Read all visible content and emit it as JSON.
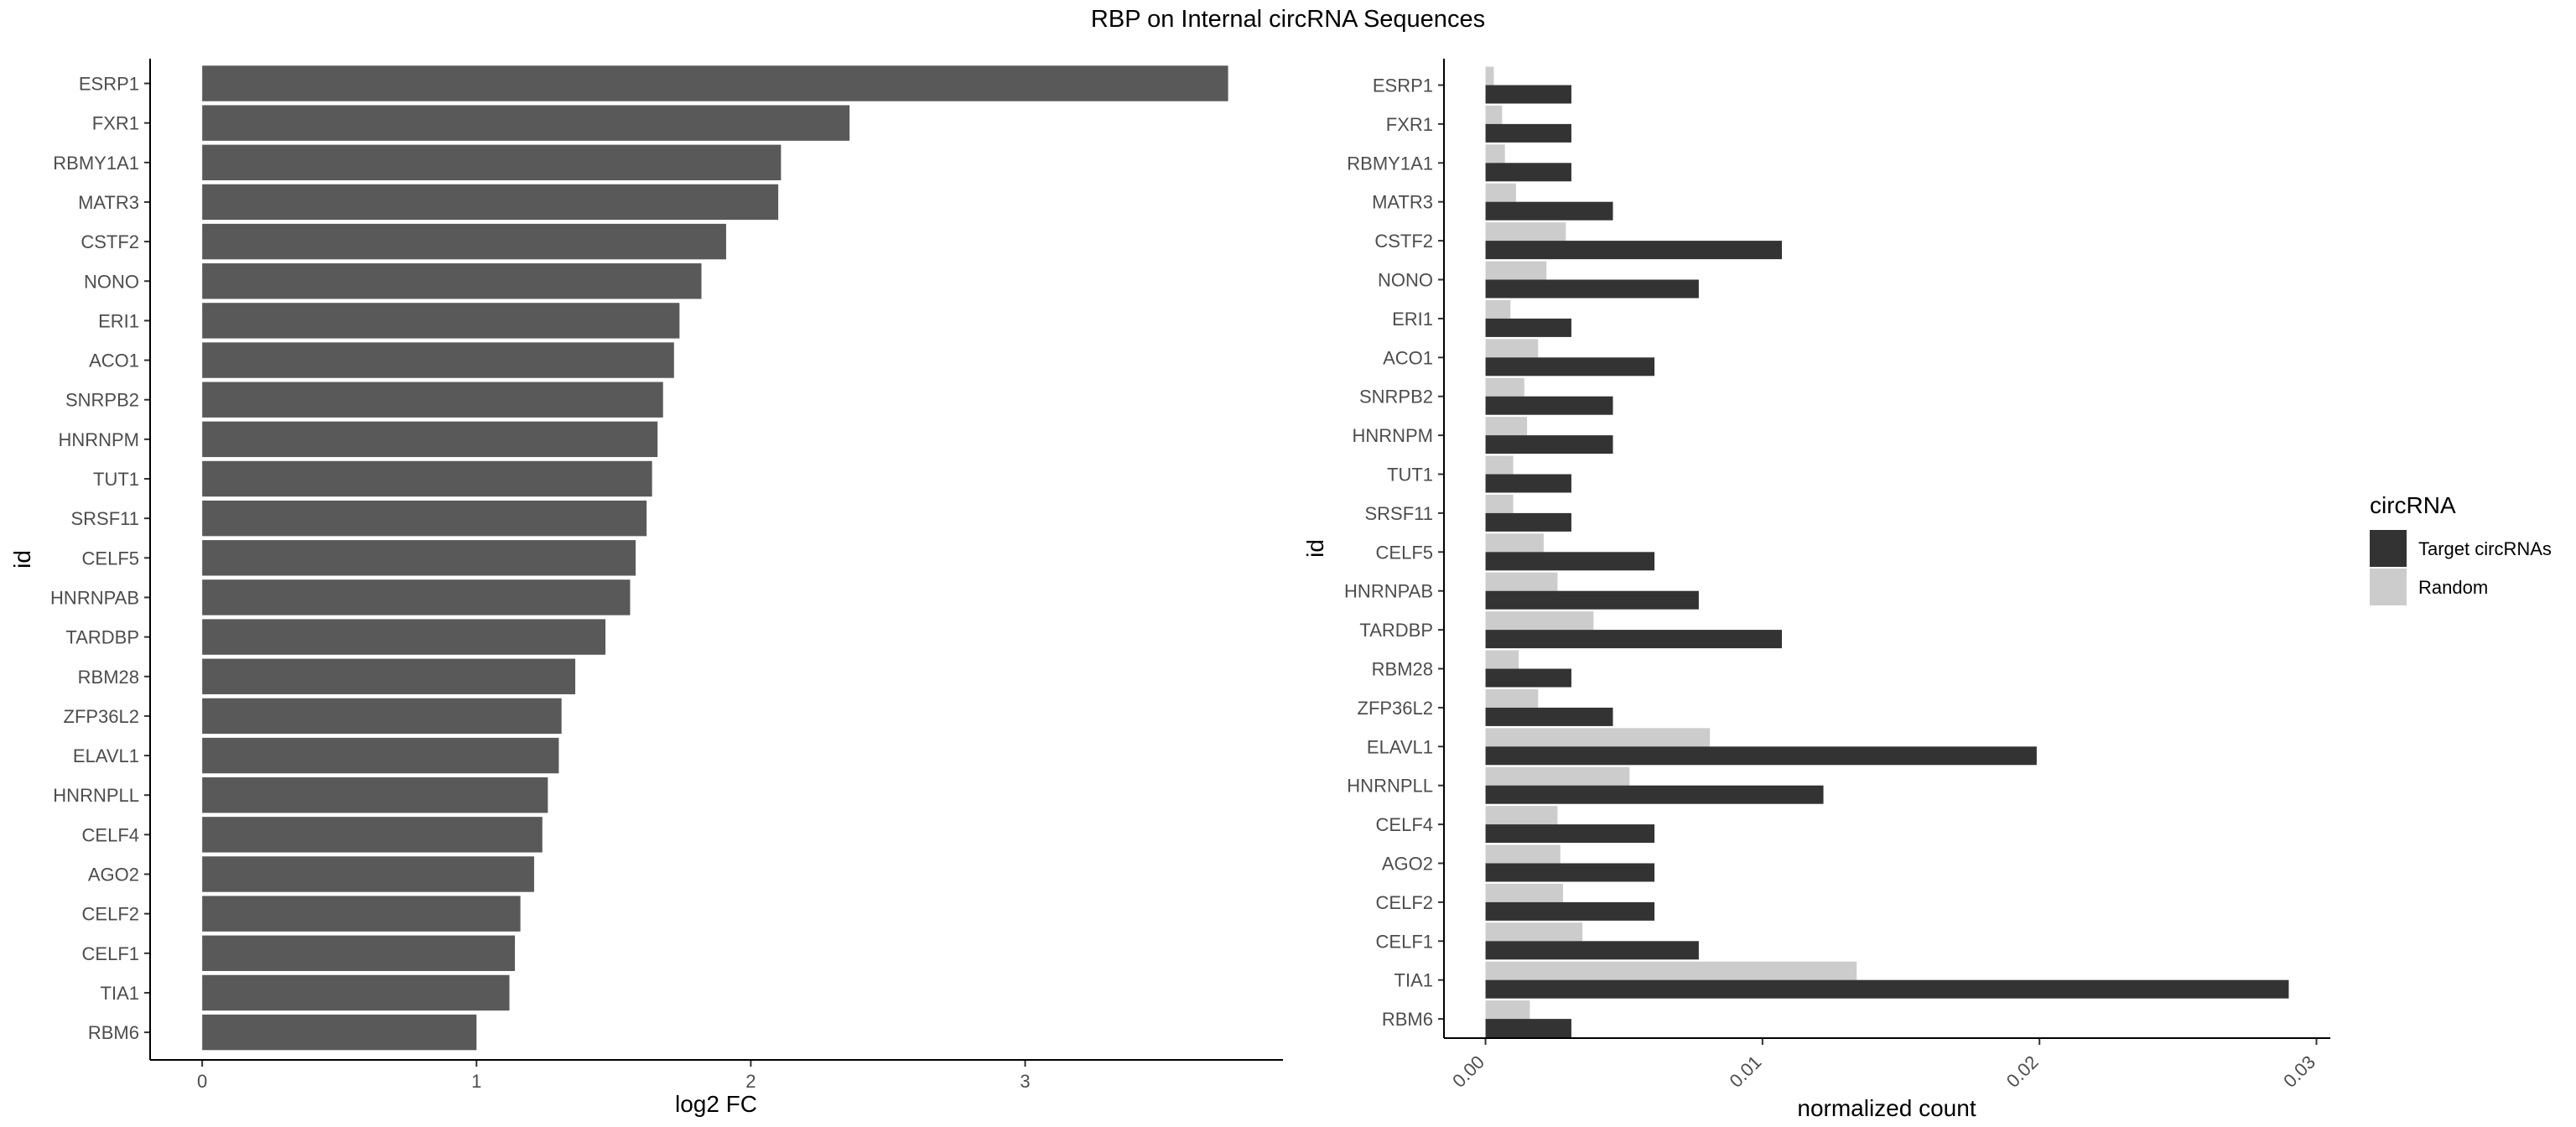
{
  "title": "RBP on Internal circRNA Sequences",
  "colors": {
    "left_bar": "#595959",
    "target": "#333333",
    "random": "#cccccc",
    "axis": "#000000"
  },
  "chart_data": [
    {
      "type": "bar",
      "orientation": "horizontal",
      "categories": [
        "ESRP1",
        "FXR1",
        "RBMY1A1",
        "MATR3",
        "CSTF2",
        "NONO",
        "ERI1",
        "ACO1",
        "SNRPB2",
        "HNRNPM",
        "TUT1",
        "SRSF11",
        "CELF5",
        "HNRNPAB",
        "TARDBP",
        "RBM28",
        "ZFP36L2",
        "ELAVL1",
        "HNRNPLL",
        "CELF4",
        "AGO2",
        "CELF2",
        "CELF1",
        "TIA1",
        "RBM6"
      ],
      "values": [
        3.74,
        2.36,
        2.11,
        2.1,
        1.91,
        1.82,
        1.74,
        1.72,
        1.68,
        1.66,
        1.64,
        1.62,
        1.58,
        1.56,
        1.47,
        1.36,
        1.31,
        1.3,
        1.26,
        1.24,
        1.21,
        1.16,
        1.14,
        1.12,
        1.0
      ],
      "xlabel": "log2 FC",
      "ylabel": "id",
      "xlim": [
        -0.19,
        3.94
      ],
      "xticks": [
        0,
        1,
        2,
        3
      ],
      "grid": false
    },
    {
      "type": "bar",
      "orientation": "horizontal",
      "grouped": true,
      "categories": [
        "ESRP1",
        "FXR1",
        "RBMY1A1",
        "MATR3",
        "CSTF2",
        "NONO",
        "ERI1",
        "ACO1",
        "SNRPB2",
        "HNRNPM",
        "TUT1",
        "SRSF11",
        "CELF5",
        "HNRNPAB",
        "TARDBP",
        "RBM28",
        "ZFP36L2",
        "ELAVL1",
        "HNRNPLL",
        "CELF4",
        "AGO2",
        "CELF2",
        "CELF1",
        "TIA1",
        "RBM6"
      ],
      "series": [
        {
          "name": "Target circRNAs",
          "values": [
            0.0031,
            0.0031,
            0.0031,
            0.0046,
            0.0107,
            0.0077,
            0.0031,
            0.0061,
            0.0046,
            0.0046,
            0.0031,
            0.0031,
            0.0061,
            0.0077,
            0.0107,
            0.0031,
            0.0046,
            0.0199,
            0.0122,
            0.0061,
            0.0061,
            0.0061,
            0.0077,
            0.029,
            0.0031
          ]
        },
        {
          "name": "Random",
          "values": [
            0.0003,
            0.0006,
            0.0007,
            0.0011,
            0.0029,
            0.0022,
            0.0009,
            0.0019,
            0.0014,
            0.0015,
            0.001,
            0.001,
            0.0021,
            0.0026,
            0.0039,
            0.0012,
            0.0019,
            0.0081,
            0.0052,
            0.0026,
            0.0027,
            0.0028,
            0.0035,
            0.0134,
            0.0016
          ]
        }
      ],
      "xlabel": "normalized count",
      "ylabel": "id",
      "xlim": [
        -0.0015,
        0.0305
      ],
      "xticks": [
        0.0,
        0.01,
        0.02,
        0.03
      ],
      "xtick_labels": [
        "0.00",
        "0.01",
        "0.02",
        "0.03"
      ],
      "grid": false,
      "legend": {
        "title": "circRNA",
        "position": "right"
      }
    }
  ]
}
